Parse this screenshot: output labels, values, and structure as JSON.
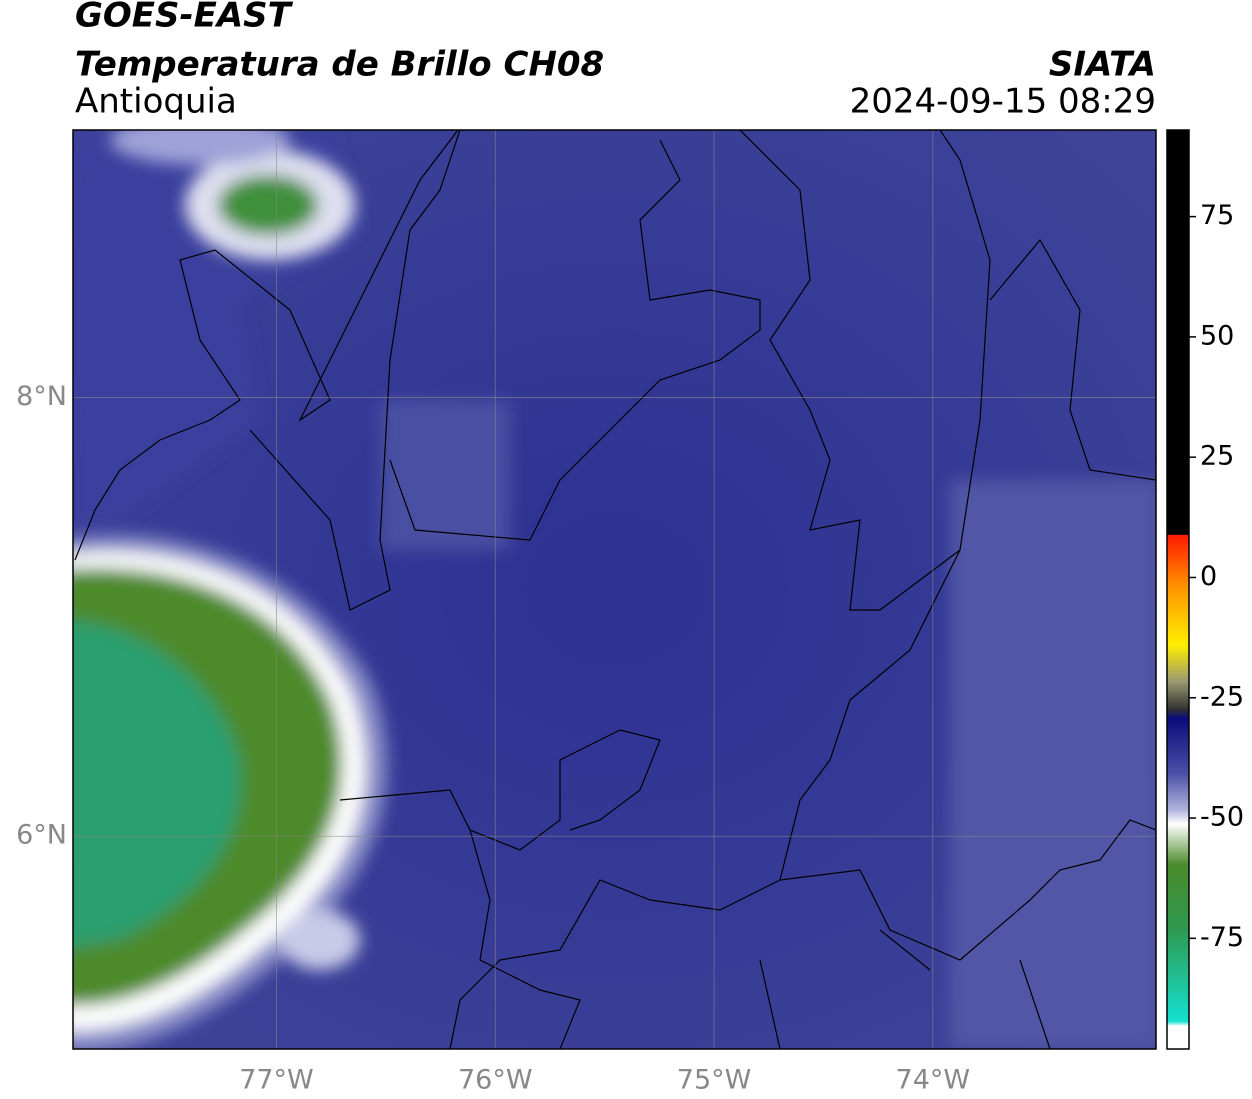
{
  "header": {
    "title": "GOES-EAST",
    "subtitle": "Temperatura de Brillo CH08",
    "region": "Antioquia",
    "source": "SIATA",
    "datetime": "2024-09-15 08:29"
  },
  "map": {
    "xlim": [
      -77.93,
      -72.98
    ],
    "ylim": [
      5.03,
      9.22
    ],
    "xticks": [
      {
        "value": -77,
        "label": "77°W"
      },
      {
        "value": -76,
        "label": "76°W"
      },
      {
        "value": -75,
        "label": "75°W"
      },
      {
        "value": -74,
        "label": "74°W"
      }
    ],
    "yticks": [
      {
        "value": 8,
        "label": "8°N"
      },
      {
        "value": 6,
        "label": "6°N"
      }
    ]
  },
  "colorbar": {
    "lim": [
      -98,
      93
    ],
    "ticks": [
      75,
      50,
      25,
      0,
      -25,
      -50,
      -75
    ]
  }
}
